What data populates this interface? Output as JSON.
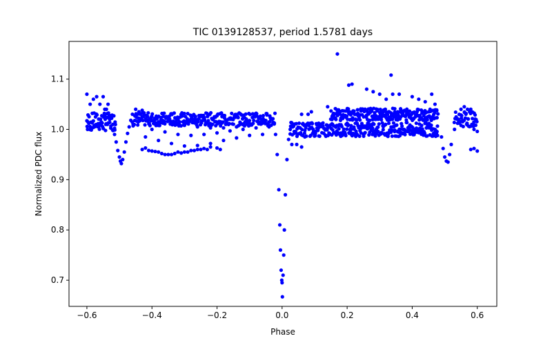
{
  "chart_data": {
    "type": "scatter",
    "title": "TIC 0139128537, period 1.5781 days",
    "xlabel": "Phase",
    "ylabel": "Normalized PDC flux",
    "xlim": [
      -0.655,
      0.66
    ],
    "ylim": [
      0.648,
      1.175
    ],
    "xticks": [
      -0.6,
      -0.4,
      -0.2,
      0.0,
      0.2,
      0.4,
      0.6
    ],
    "xtick_labels": [
      "−0.6",
      "−0.4",
      "−0.2",
      "0.0",
      "0.2",
      "0.4",
      "0.6"
    ],
    "yticks": [
      0.7,
      0.8,
      0.9,
      1.0,
      1.1
    ],
    "ytick_labels": [
      "0.7",
      "0.8",
      "0.9",
      "1.0",
      "1.1"
    ],
    "grid": false,
    "series": [
      {
        "name": "PDC flux",
        "color": "#0000ff",
        "marker": "circle",
        "points": [
          [
            -0.6,
            1.07
          ],
          [
            -0.598,
            1.0
          ],
          [
            -0.59,
            1.05
          ],
          [
            -0.58,
            1.06
          ],
          [
            -0.57,
            1.065
          ],
          [
            -0.56,
            1.05
          ],
          [
            -0.55,
            1.065
          ],
          [
            -0.545,
            1.04
          ],
          [
            -0.54,
            1.04
          ],
          [
            -0.535,
            1.05
          ],
          [
            -0.53,
            1.02
          ],
          [
            -0.52,
            1.01
          ],
          [
            -0.515,
            0.99
          ],
          [
            -0.51,
            0.975
          ],
          [
            -0.505,
            0.958
          ],
          [
            -0.5,
            0.945
          ],
          [
            -0.497,
            0.937
          ],
          [
            -0.494,
            0.932
          ],
          [
            -0.49,
            0.94
          ],
          [
            -0.485,
            0.955
          ],
          [
            -0.48,
            0.975
          ],
          [
            -0.475,
            0.992
          ],
          [
            -0.47,
            1.005
          ],
          [
            -0.465,
            1.018
          ],
          [
            -0.46,
            1.03
          ],
          [
            -0.45,
            1.04
          ],
          [
            -0.44,
            1.035
          ],
          [
            -0.43,
            1.038
          ],
          [
            -0.43,
            0.96
          ],
          [
            -0.42,
            0.963
          ],
          [
            -0.41,
            0.958
          ],
          [
            -0.4,
            0.957
          ],
          [
            -0.39,
            0.956
          ],
          [
            -0.38,
            0.955
          ],
          [
            -0.37,
            0.952
          ],
          [
            -0.36,
            0.95
          ],
          [
            -0.35,
            0.95
          ],
          [
            -0.34,
            0.95
          ],
          [
            -0.33,
            0.952
          ],
          [
            -0.32,
            0.955
          ],
          [
            -0.31,
            0.953
          ],
          [
            -0.3,
            0.955
          ],
          [
            -0.29,
            0.955
          ],
          [
            -0.28,
            0.958
          ],
          [
            -0.27,
            0.958
          ],
          [
            -0.26,
            0.96
          ],
          [
            -0.25,
            0.96
          ],
          [
            -0.24,
            0.962
          ],
          [
            -0.23,
            0.96
          ],
          [
            -0.22,
            0.965
          ],
          [
            -0.2,
            0.963
          ],
          [
            -0.19,
            0.96
          ],
          [
            -0.42,
            0.985
          ],
          [
            -0.38,
            0.978
          ],
          [
            -0.34,
            0.972
          ],
          [
            -0.3,
            0.967
          ],
          [
            -0.26,
            0.968
          ],
          [
            -0.22,
            0.972
          ],
          [
            -0.18,
            0.978
          ],
          [
            -0.14,
            0.983
          ],
          [
            -0.1,
            0.988
          ],
          [
            -0.06,
            0.99
          ],
          [
            -0.4,
            1.0
          ],
          [
            -0.36,
            0.995
          ],
          [
            -0.32,
            0.99
          ],
          [
            -0.28,
            0.988
          ],
          [
            -0.24,
            0.99
          ],
          [
            -0.2,
            0.993
          ],
          [
            -0.16,
            0.997
          ],
          [
            -0.12,
            1.0
          ],
          [
            -0.08,
            1.003
          ],
          [
            -0.04,
            1.005
          ],
          [
            -0.38,
            1.015
          ],
          [
            -0.34,
            1.012
          ],
          [
            -0.3,
            1.008
          ],
          [
            -0.26,
            1.005
          ],
          [
            -0.22,
            1.003
          ],
          [
            -0.18,
            1.003
          ],
          [
            -0.14,
            1.005
          ],
          [
            -0.1,
            1.008
          ],
          [
            -0.02,
            0.99
          ],
          [
            -0.015,
            0.95
          ],
          [
            -0.01,
            0.88
          ],
          [
            -0.007,
            0.81
          ],
          [
            -0.005,
            0.76
          ],
          [
            -0.003,
            0.72
          ],
          [
            -0.001,
            0.7
          ],
          [
            0.0,
            0.695
          ],
          [
            0.001,
            0.667
          ],
          [
            0.003,
            0.71
          ],
          [
            0.005,
            0.75
          ],
          [
            0.007,
            0.8
          ],
          [
            0.01,
            0.87
          ],
          [
            0.015,
            0.94
          ],
          [
            0.02,
            0.98
          ],
          [
            0.025,
            1.0
          ],
          [
            0.03,
            0.97
          ],
          [
            0.045,
            0.97
          ],
          [
            0.06,
            0.965
          ],
          [
            0.07,
            0.985
          ],
          [
            0.06,
            1.03
          ],
          [
            0.08,
            1.03
          ],
          [
            0.09,
            1.035
          ],
          [
            0.14,
            1.045
          ],
          [
            0.17,
            1.15
          ],
          [
            0.205,
            1.088
          ],
          [
            0.215,
            1.09
          ],
          [
            0.26,
            1.08
          ],
          [
            0.28,
            1.075
          ],
          [
            0.3,
            1.07
          ],
          [
            0.32,
            1.06
          ],
          [
            0.335,
            1.108
          ],
          [
            0.34,
            1.07
          ],
          [
            0.36,
            1.07
          ],
          [
            0.4,
            1.065
          ],
          [
            0.42,
            1.06
          ],
          [
            0.44,
            1.055
          ],
          [
            0.46,
            1.07
          ],
          [
            0.47,
            1.05
          ],
          [
            0.49,
            0.985
          ],
          [
            0.495,
            0.962
          ],
          [
            0.5,
            0.945
          ],
          [
            0.505,
            0.937
          ],
          [
            0.51,
            0.935
          ],
          [
            0.515,
            0.95
          ],
          [
            0.52,
            0.97
          ],
          [
            0.53,
            1.0
          ],
          [
            0.54,
            1.02
          ],
          [
            0.55,
            1.04
          ],
          [
            0.56,
            1.045
          ],
          [
            0.57,
            1.04
          ],
          [
            0.58,
            1.04
          ],
          [
            0.59,
            1.0
          ],
          [
            0.6,
            0.996
          ],
          [
            0.58,
            0.96
          ],
          [
            0.59,
            0.962
          ],
          [
            0.6,
            0.957
          ]
        ],
        "bands": [
          {
            "x0": -0.6,
            "x1": -0.51,
            "center": 1.015,
            "spread": 0.018
          },
          {
            "x0": -0.46,
            "x1": -0.02,
            "center": 1.02,
            "spread": 0.013
          },
          {
            "x0": 0.025,
            "x1": 0.48,
            "center": 1.0,
            "spread": 0.014
          },
          {
            "x0": 0.15,
            "x1": 0.48,
            "center": 1.03,
            "spread": 0.012
          },
          {
            "x0": 0.53,
            "x1": 0.6,
            "center": 1.02,
            "spread": 0.015
          }
        ]
      }
    ]
  }
}
